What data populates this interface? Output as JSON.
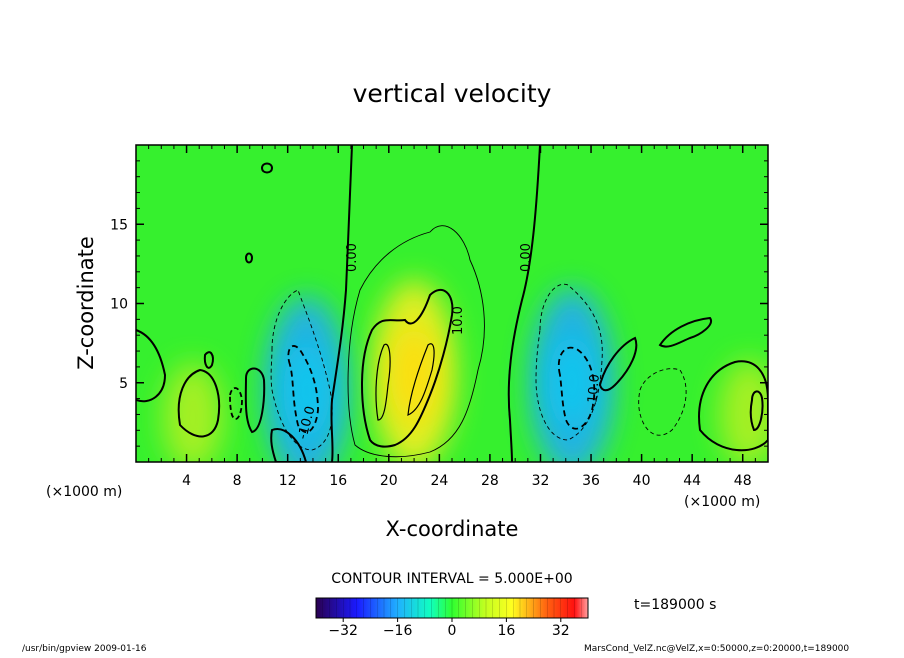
{
  "chart_data": {
    "type": "heatmap",
    "title": "vertical velocity",
    "xlabel": "X-coordinate",
    "ylabel": "Z-coordinate",
    "x_unit": "(×1000 m)",
    "y_unit": "(×1000 m)",
    "xlim": [
      0,
      50
    ],
    "ylim": [
      0,
      20
    ],
    "x_ticks": [
      4,
      8,
      12,
      16,
      20,
      24,
      28,
      32,
      36,
      40,
      44,
      48
    ],
    "y_ticks": [
      5,
      10,
      15
    ],
    "contour_interval_text": "CONTOUR INTERVAL = 5.000E+00",
    "time_text": "t=189000 s",
    "colorbar": {
      "range": [
        -40,
        40
      ],
      "tick_values": [
        -32,
        -16,
        0,
        16,
        32
      ],
      "tick_labels": [
        "−32",
        "−16",
        "0",
        "16",
        "32"
      ]
    },
    "contour_labels": [
      "0.00",
      "0.00",
      "10.0",
      "-10.0",
      "-10.0"
    ],
    "features": [
      {
        "kind": "updraft",
        "x": 22,
        "z": 5.5,
        "value": 14
      },
      {
        "kind": "downdraft",
        "x": 13.5,
        "z": 4.5,
        "value": -13
      },
      {
        "kind": "downdraft",
        "x": 34.5,
        "z": 5,
        "value": -11
      },
      {
        "kind": "updraft",
        "x": 4.5,
        "z": 2.8,
        "value": 6
      },
      {
        "kind": "updraft",
        "x": 48.5,
        "z": 3,
        "value": 7
      }
    ]
  },
  "footer": {
    "left": "/usr/bin/gpview   2009-01-16",
    "right": "MarsCond_VelZ.nc@VelZ,x=0:50000,z=0:20000,t=189000"
  }
}
